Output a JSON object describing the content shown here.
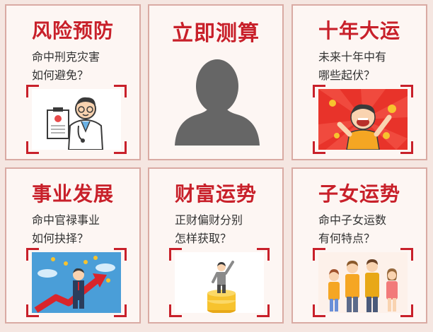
{
  "cards": [
    {
      "title": "风险预防",
      "subtitle": "命中刑克灾害\n如何避免？",
      "icon": "doctor-illustration"
    },
    {
      "title": "立即测算",
      "icon": "avatar-silhouette-icon"
    },
    {
      "title": "十年大运",
      "subtitle": "未来十年中有\n哪些起伏？",
      "icon": "celebrating-man-illustration"
    },
    {
      "title": "事业发展",
      "subtitle": "命中官禄事业\n如何抉择？",
      "icon": "career-growth-illustration"
    },
    {
      "title": "财富运势",
      "subtitle": "正财偏财分别\n怎样获取？",
      "icon": "gold-coins-illustration"
    },
    {
      "title": "子女运势",
      "subtitle": "命中子女运数\n有何特点？",
      "icon": "family-illustration"
    }
  ],
  "colors": {
    "accent": "#c8202a",
    "card_border": "#d9aaa3",
    "background": "#f5e6e1"
  }
}
